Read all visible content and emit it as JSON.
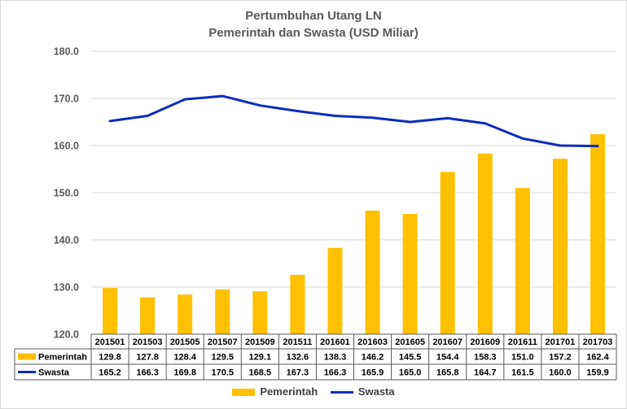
{
  "chart_data": {
    "type": "bar",
    "title": "Pertumbuhan Utang LN",
    "subtitle": "Pemerintah dan Swasta (USD Miliar)",
    "categories": [
      "201501",
      "201503",
      "201505",
      "201507",
      "201509",
      "201511",
      "201601",
      "201603",
      "201605",
      "201607",
      "201609",
      "201611",
      "201701",
      "201703"
    ],
    "series": [
      {
        "name": "Pemerintah",
        "type": "bar",
        "color": "#ffc000",
        "values": [
          129.8,
          127.8,
          128.4,
          129.5,
          129.1,
          132.6,
          138.3,
          146.2,
          145.5,
          154.4,
          158.3,
          151.0,
          157.2,
          162.4
        ],
        "labels": [
          "129.8",
          "127.8",
          "128.4",
          "129.5",
          "129.1",
          "132.6",
          "138.3",
          "146.2",
          "145.5",
          "154.4",
          "158.3",
          "151.0",
          "157.2",
          "162.4"
        ]
      },
      {
        "name": "Swasta",
        "type": "line",
        "color": "#0c2dbd",
        "values": [
          165.2,
          166.3,
          169.8,
          170.5,
          168.5,
          167.3,
          166.3,
          165.9,
          165.0,
          165.8,
          164.7,
          161.5,
          160.0,
          159.9
        ],
        "labels": [
          "165.2",
          "166.3",
          "169.8",
          "170.5",
          "168.5",
          "167.3",
          "166.3",
          "165.9",
          "165.0",
          "165.8",
          "164.7",
          "161.5",
          "160.0",
          "159.9"
        ]
      }
    ],
    "ylim": [
      120,
      180
    ],
    "yticks": [
      "120.0",
      "130.0",
      "140.0",
      "150.0",
      "160.0",
      "170.0",
      "180.0"
    ],
    "grid": true,
    "legend_position": "bottom",
    "data_table": true
  }
}
